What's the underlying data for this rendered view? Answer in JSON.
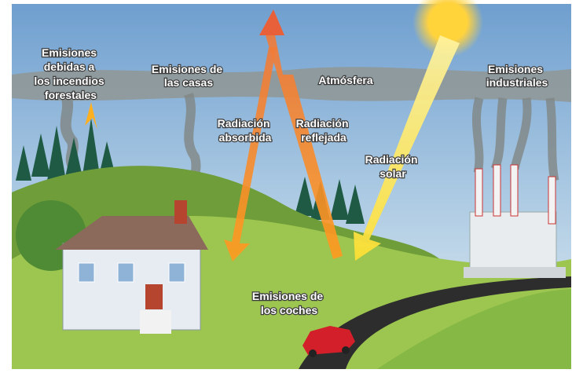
{
  "labels": [
    {
      "lines": [
        "Emisiones",
        "debidas a",
        "los incendios",
        "forestales"
      ]
    },
    {
      "lines": [
        "Emisiones de",
        "las casas"
      ]
    },
    {
      "lines": [
        "Atmósfera"
      ]
    },
    {
      "lines": [
        "Emisiones",
        "industriales"
      ]
    },
    {
      "lines": [
        "Radiación",
        "absorbida"
      ]
    },
    {
      "lines": [
        "Radiación",
        "reflejada"
      ]
    },
    {
      "lines": [
        "Radiación",
        "solar"
      ]
    },
    {
      "lines": [
        "Emisiones de",
        "los coches"
      ]
    }
  ]
}
